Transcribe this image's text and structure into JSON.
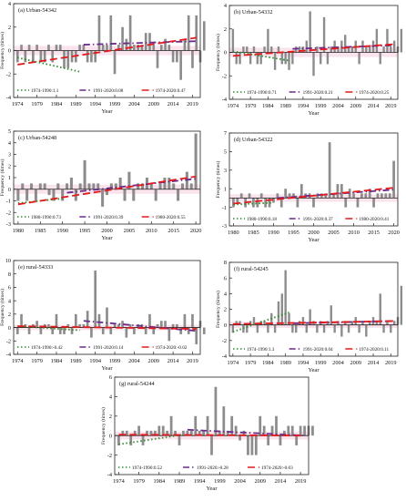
{
  "figure": {
    "y_axis_label": "Frequency (times)",
    "x_axis_label": "Year"
  },
  "chart_data": [
    {
      "type": "bar",
      "panel": "(a) Urban-54342",
      "x_ticks": [
        1974,
        1979,
        1984,
        1989,
        1994,
        1999,
        2004,
        2009,
        2014,
        2019
      ],
      "xlim": [
        1973,
        2021
      ],
      "ylim": [
        -4,
        4
      ],
      "y_ticks": [
        -4,
        -2,
        0,
        2,
        4
      ],
      "years_start": 1974,
      "values": [
        -1,
        0.5,
        -1,
        0.5,
        -1,
        0.5,
        -1,
        -1,
        0.5,
        -1,
        0.5,
        0.5,
        -1.5,
        -1.5,
        -1,
        -1,
        0.5,
        0.5,
        -1,
        -1,
        -1,
        3,
        0.5,
        0.5,
        3,
        -2,
        0.5,
        2,
        1,
        3,
        0.5,
        0.5,
        0.5,
        1.5,
        1.5,
        0.5,
        -1.5,
        0.5,
        1,
        0.5,
        -1,
        -1,
        -2.5,
        1,
        3,
        -1.5,
        3,
        -1,
        2.5
      ],
      "trends": [
        {
          "name": "1974-1990:1.1",
          "color": "#2e8b2e",
          "style": "dotted",
          "x": [
            1974,
            1990
          ],
          "y": [
            -0.6,
            -1.8
          ]
        },
        {
          "name": "1991-2020:0.08",
          "color": "#6a2a8a",
          "style": "dashdot",
          "x": [
            1991,
            2020
          ],
          "y": [
            0.5,
            0.8
          ]
        },
        {
          "name": "1974-2020:0.47",
          "color": "#e31a1c",
          "style": "dashed",
          "x": [
            1974,
            2020
          ],
          "y": [
            -1.2,
            1.1
          ]
        }
      ]
    },
    {
      "type": "bar",
      "panel": "(b) Urban-54332",
      "x_ticks": [
        1974,
        1979,
        1984,
        1989,
        1994,
        1999,
        2004,
        2009,
        2014,
        2019
      ],
      "xlim": [
        1973,
        2021
      ],
      "ylim": [
        -4,
        4
      ],
      "y_ticks": [
        -4,
        -2,
        0,
        2,
        4
      ],
      "years_start": 1974,
      "values": [
        2,
        -1,
        -1,
        0.5,
        0.5,
        -1,
        0.5,
        -1,
        -1,
        0.5,
        2,
        0.5,
        -1.5,
        0.5,
        -1,
        -1,
        -1.5,
        -1,
        0.5,
        0.5,
        0.5,
        1,
        3.5,
        -2,
        0.5,
        -1,
        3,
        -1,
        0.5,
        1,
        0.5,
        1,
        1.5,
        0.5,
        0.5,
        1,
        -1,
        1,
        0.5,
        0.5,
        1,
        2,
        -1,
        0.5,
        2,
        0.5,
        1,
        0.5,
        2
      ],
      "trends": [
        {
          "name": "1974-1990:0.71",
          "color": "#2e8b2e",
          "style": "dotted",
          "x": [
            1974,
            1990
          ],
          "y": [
            0.1,
            -0.7
          ]
        },
        {
          "name": "1991-2020:0.21",
          "color": "#6a2a8a",
          "style": "dashdot",
          "x": [
            1991,
            2020
          ],
          "y": [
            0.3,
            0.6
          ]
        },
        {
          "name": "1974-2020:0.25",
          "color": "#e31a1c",
          "style": "dashed",
          "x": [
            1974,
            2020
          ],
          "y": [
            -0.3,
            0.7
          ]
        }
      ]
    },
    {
      "type": "bar",
      "panel": "(c) Urban-54248",
      "x_ticks": [
        1980,
        1985,
        1990,
        1995,
        2000,
        2005,
        2010,
        2015,
        2020
      ],
      "xlim": [
        1979,
        2021
      ],
      "ylim": [
        -3,
        5
      ],
      "y_ticks": [
        -3,
        -2,
        -1,
        0,
        1,
        2,
        3,
        4,
        5
      ],
      "years_start": 1980,
      "values": [
        -1,
        0.5,
        -1,
        0.5,
        -1,
        0.5,
        0.5,
        -0.5,
        -1,
        0.5,
        -1,
        0.5,
        1,
        -1,
        0.5,
        2.5,
        0.5,
        0.5,
        0.5,
        -1.5,
        -0.5,
        0.5,
        0.5,
        1,
        -1,
        1.5,
        -1,
        0.5,
        0.5,
        1,
        0.5,
        -1,
        0.5,
        1,
        1,
        0.5,
        -1,
        0.5,
        1.5,
        0.5,
        4.8
      ],
      "trends": [
        {
          "name": "1980-1990:0.73",
          "color": "#2e8b2e",
          "style": "dotted",
          "x": [
            1980,
            1990
          ],
          "y": [
            -1.2,
            -0.8
          ]
        },
        {
          "name": "1991-2020:0.39",
          "color": "#6a2a8a",
          "style": "dashdot",
          "x": [
            1991,
            2020
          ],
          "y": [
            -0.3,
            0.9
          ]
        },
        {
          "name": "1980-2020:0.55",
          "color": "#e31a1c",
          "style": "dashed",
          "x": [
            1980,
            2020
          ],
          "y": [
            -1.3,
            1.1
          ]
        }
      ]
    },
    {
      "type": "bar",
      "panel": "(d) Urban-54322",
      "x_ticks": [
        1980,
        1985,
        1990,
        1995,
        2000,
        2005,
        2010,
        2015,
        2020
      ],
      "xlim": [
        1979,
        2021
      ],
      "ylim": [
        -3,
        7
      ],
      "y_ticks": [
        -3,
        -1,
        1,
        3,
        5,
        7
      ],
      "years_start": 1980,
      "values": [
        -1,
        -0.5,
        0.5,
        -1,
        0.5,
        -1,
        -1,
        0.5,
        -1,
        -1,
        -0.5,
        0.5,
        -1,
        1,
        0.5,
        0.5,
        -1,
        1.5,
        0.5,
        0.5,
        -1,
        0.5,
        0.5,
        0.5,
        6,
        0.5,
        1.5,
        1.5,
        -1,
        1,
        0.5,
        -1,
        0.5,
        0.5,
        1,
        -1,
        0.5,
        0.5,
        0.5,
        0.5,
        4
      ],
      "trends": [
        {
          "name": "1980-1990:0.18",
          "color": "#2e8b2e",
          "style": "dotted",
          "x": [
            1980,
            1990
          ],
          "y": [
            -0.7,
            -0.5
          ]
        },
        {
          "name": "1991-2020:0.37",
          "color": "#6a2a8a",
          "style": "dashdot",
          "x": [
            1991,
            2020
          ],
          "y": [
            0,
            0.9
          ]
        },
        {
          "name": "1980-2020:0.41",
          "color": "#e31a1c",
          "style": "dashed",
          "x": [
            1980,
            2020
          ],
          "y": [
            -0.6,
            1.1
          ]
        }
      ]
    },
    {
      "type": "bar",
      "panel": "(e) rural-54333",
      "x_ticks": [
        1974,
        1979,
        1984,
        1989,
        1994,
        1999,
        2004,
        2009,
        2014,
        2019
      ],
      "xlim": [
        1973,
        2021
      ],
      "ylim": [
        -4,
        10
      ],
      "y_ticks": [
        -4,
        -2,
        0,
        2,
        4,
        6,
        8,
        10
      ],
      "years_start": 1974,
      "values": [
        -1,
        2,
        0.5,
        -1,
        0.5,
        1,
        -1,
        0.5,
        0.5,
        -1,
        2,
        -1,
        -1,
        0.5,
        -1,
        2,
        0.5,
        0.5,
        2.5,
        -1.5,
        8.5,
        2,
        -1,
        3,
        -1,
        0.5,
        0.5,
        1,
        -1.5,
        0.5,
        -1,
        0.5,
        0.5,
        -1,
        2,
        -1,
        0.5,
        1,
        1,
        -2,
        0.5,
        0.5,
        -1,
        2,
        -1,
        2,
        -2.5,
        1,
        -1
      ],
      "trends": [
        {
          "name": "1974-1990:-0.42",
          "color": "#2e8b2e",
          "style": "dotted",
          "x": [
            1974,
            1990
          ],
          "y": [
            0.2,
            -0.4
          ]
        },
        {
          "name": "1991-2020:0.14",
          "color": "#6a2a8a",
          "style": "dashdot",
          "x": [
            1991,
            2020
          ],
          "y": [
            1,
            -0.5
          ]
        },
        {
          "name": "1974-2020:-0.02",
          "color": "#e31a1c",
          "style": "dashed",
          "x": [
            1974,
            2020
          ],
          "y": [
            0.2,
            -0.2
          ]
        }
      ]
    },
    {
      "type": "bar",
      "panel": "(f) rural-54245",
      "x_ticks": [
        1974,
        1979,
        1984,
        1989,
        1994,
        1999,
        2004,
        2009,
        2014,
        2019
      ],
      "xlim": [
        1973,
        2021
      ],
      "ylim": [
        -4,
        8
      ],
      "y_ticks": [
        -4,
        -2,
        0,
        2,
        4,
        6,
        8
      ],
      "years_start": 1974,
      "values": [
        -1,
        0.5,
        0.5,
        -1,
        -1,
        0.5,
        1,
        -1,
        0.5,
        0.5,
        -1,
        1.5,
        -1,
        3,
        4,
        7,
        1.5,
        -1,
        -1,
        0.5,
        1,
        -1,
        2,
        0.5,
        -1,
        0.5,
        -1,
        0.5,
        2.5,
        -1,
        0.5,
        -1.5,
        0.5,
        -1,
        0.5,
        1,
        -1,
        0.5,
        -1.5,
        0.5,
        1,
        0.5,
        4,
        -1,
        0.5,
        -1,
        0.5,
        1,
        5
      ],
      "trends": [
        {
          "name": "1974-1990:1.3",
          "color": "#2e8b2e",
          "style": "dotted",
          "x": [
            1974,
            1990
          ],
          "y": [
            -0.9,
            1.6
          ]
        },
        {
          "name": "1991-2020:0.04",
          "color": "#6a2a8a",
          "style": "dashdot",
          "x": [
            1991,
            2020
          ],
          "y": [
            0.2,
            0.5
          ]
        },
        {
          "name": "1974-2020:0.11",
          "color": "#e31a1c",
          "style": "dashed",
          "x": [
            1974,
            2020
          ],
          "y": [
            0.1,
            0.5
          ]
        }
      ]
    },
    {
      "type": "bar",
      "panel": "(g) rural-54244",
      "x_ticks": [
        1974,
        1979,
        1984,
        1989,
        1994,
        1999,
        2004,
        2009,
        2014,
        2019
      ],
      "xlim": [
        1973,
        2021
      ],
      "ylim": [
        -4,
        6
      ],
      "y_ticks": [
        -4,
        -2,
        0,
        2,
        4,
        6
      ],
      "years_start": 1974,
      "values": [
        -1,
        0.5,
        0.5,
        -1,
        0.5,
        1,
        -1,
        0.5,
        0.5,
        0.5,
        1,
        1,
        0.5,
        2,
        0.5,
        -1,
        0.5,
        0.5,
        0.5,
        2,
        0.5,
        0.5,
        2,
        -2,
        5,
        0.5,
        3,
        0.5,
        2,
        1,
        -0.5,
        0.5,
        -2,
        -2,
        -2,
        2,
        1,
        -1,
        1,
        2,
        -1,
        0.5,
        1,
        1,
        -1,
        1,
        1,
        1,
        1
      ],
      "trends": [
        {
          "name": "1974-1990:0.52",
          "color": "#2e8b2e",
          "style": "dotted",
          "x": [
            1974,
            1990
          ],
          "y": [
            -0.9,
            0.1
          ]
        },
        {
          "name": "1991-2020:-0.28",
          "color": "#6a2a8a",
          "style": "dashdot",
          "x": [
            1991,
            2020
          ],
          "y": [
            0.6,
            0
          ]
        },
        {
          "name": "1974-2020:-0.03",
          "color": "#e31a1c",
          "style": "dashed",
          "x": [
            1974,
            2020
          ],
          "y": [
            0.1,
            0
          ]
        }
      ]
    }
  ]
}
